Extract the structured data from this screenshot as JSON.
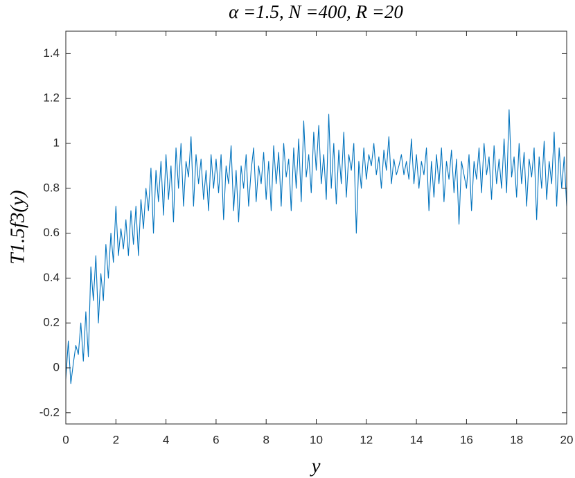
{
  "chart_data": {
    "type": "line",
    "title": "α =1.5, N =400, R =20",
    "x_label": "y",
    "y_label": "T1.5f3(y)",
    "xlim": [
      0,
      20
    ],
    "ylim": [
      -0.25,
      1.5
    ],
    "xticks": [
      0,
      2,
      4,
      6,
      8,
      10,
      12,
      14,
      16,
      18,
      20
    ],
    "yticks": [
      -0.2,
      0,
      0.2,
      0.4,
      0.6,
      0.8,
      1,
      1.2,
      1.4
    ],
    "series": [
      {
        "color": "#0072bd",
        "x": [
          0,
          0.1,
          0.2,
          0.3,
          0.4,
          0.5,
          0.6,
          0.7,
          0.8,
          0.9,
          1,
          1.1,
          1.2,
          1.3,
          1.4,
          1.5,
          1.6,
          1.7,
          1.8,
          1.9,
          2,
          2.1,
          2.2,
          2.3,
          2.4,
          2.5,
          2.6,
          2.7,
          2.8,
          2.9,
          3,
          3.1,
          3.2,
          3.3,
          3.4,
          3.5,
          3.6,
          3.7,
          3.8,
          3.9,
          4,
          4.1,
          4.2,
          4.3,
          4.4,
          4.5,
          4.6,
          4.7,
          4.8,
          4.9,
          5,
          5.1,
          5.2,
          5.3,
          5.4,
          5.5,
          5.6,
          5.7,
          5.8,
          5.9,
          6,
          6.1,
          6.2,
          6.3,
          6.4,
          6.5,
          6.6,
          6.7,
          6.8,
          6.9,
          7,
          7.1,
          7.2,
          7.3,
          7.4,
          7.5,
          7.6,
          7.7,
          7.8,
          7.9,
          8,
          8.1,
          8.2,
          8.3,
          8.4,
          8.5,
          8.6,
          8.7,
          8.8,
          8.9,
          9,
          9.1,
          9.2,
          9.3,
          9.4,
          9.5,
          9.6,
          9.7,
          9.8,
          9.9,
          10,
          10.1,
          10.2,
          10.3,
          10.4,
          10.5,
          10.6,
          10.7,
          10.8,
          10.9,
          11,
          11.1,
          11.2,
          11.3,
          11.4,
          11.5,
          11.6,
          11.7,
          11.8,
          11.9,
          12,
          12.1,
          12.2,
          12.3,
          12.4,
          12.5,
          12.6,
          12.7,
          12.8,
          12.9,
          13,
          13.1,
          13.2,
          13.3,
          13.4,
          13.5,
          13.6,
          13.7,
          13.8,
          13.9,
          14,
          14.1,
          14.2,
          14.3,
          14.4,
          14.5,
          14.6,
          14.7,
          14.8,
          14.9,
          15,
          15.1,
          15.2,
          15.3,
          15.4,
          15.5,
          15.6,
          15.7,
          15.8,
          15.9,
          16,
          16.1,
          16.2,
          16.3,
          16.4,
          16.5,
          16.6,
          16.7,
          16.8,
          16.9,
          17,
          17.1,
          17.2,
          17.3,
          17.4,
          17.5,
          17.6,
          17.7,
          17.8,
          17.9,
          18,
          18.1,
          18.2,
          18.3,
          18.4,
          18.5,
          18.6,
          18.7,
          18.8,
          18.9,
          19,
          19.1,
          19.2,
          19.3,
          19.4,
          19.5,
          19.6,
          19.7,
          19.8,
          19.9,
          20
        ],
        "values": [
          -0.05,
          0.12,
          -0.07,
          0.02,
          0.1,
          0.06,
          0.2,
          0.03,
          0.25,
          0.05,
          0.45,
          0.3,
          0.5,
          0.2,
          0.42,
          0.3,
          0.55,
          0.4,
          0.6,
          0.47,
          0.72,
          0.5,
          0.62,
          0.53,
          0.66,
          0.5,
          0.7,
          0.55,
          0.72,
          0.5,
          0.75,
          0.62,
          0.8,
          0.7,
          0.89,
          0.6,
          0.88,
          0.74,
          0.92,
          0.68,
          0.95,
          0.75,
          0.9,
          0.65,
          0.98,
          0.8,
          1.0,
          0.72,
          0.92,
          0.85,
          1.03,
          0.72,
          0.95,
          0.82,
          0.93,
          0.75,
          0.88,
          0.7,
          0.95,
          0.8,
          0.93,
          0.78,
          0.95,
          0.66,
          0.9,
          0.82,
          0.99,
          0.7,
          0.88,
          0.65,
          0.9,
          0.8,
          0.95,
          0.72,
          0.88,
          0.98,
          0.74,
          0.9,
          0.82,
          0.96,
          0.75,
          0.92,
          0.7,
          0.99,
          0.82,
          0.96,
          0.72,
          1.0,
          0.85,
          0.93,
          0.7,
          0.98,
          0.8,
          1.02,
          0.74,
          1.1,
          0.85,
          0.95,
          0.78,
          1.05,
          0.88,
          1.08,
          0.82,
          0.95,
          0.75,
          1.13,
          0.8,
          1.0,
          0.73,
          0.97,
          0.82,
          1.05,
          0.76,
          0.95,
          0.88,
          1.0,
          0.6,
          0.92,
          0.8,
          0.98,
          0.84,
          0.95,
          0.9,
          1.0,
          0.86,
          0.94,
          0.8,
          0.97,
          0.88,
          1.03,
          0.82,
          0.93,
          0.86,
          0.9,
          0.95,
          0.86,
          0.92,
          0.84,
          1.02,
          0.82,
          0.95,
          0.8,
          0.92,
          0.86,
          0.98,
          0.7,
          0.92,
          0.76,
          0.95,
          0.82,
          0.98,
          0.74,
          0.92,
          0.84,
          0.97,
          0.78,
          0.93,
          0.64,
          0.92,
          0.86,
          0.8,
          0.95,
          0.7,
          0.92,
          0.84,
          0.98,
          0.78,
          1.0,
          0.86,
          0.94,
          0.75,
          0.99,
          0.82,
          0.93,
          0.8,
          1.02,
          0.78,
          1.15,
          0.85,
          0.94,
          0.76,
          1.0,
          0.82,
          0.96,
          0.72,
          0.93,
          0.85,
          0.98,
          0.66,
          0.94,
          0.8,
          1.01,
          0.75,
          0.92,
          0.82,
          1.05,
          0.72,
          0.98,
          0.8,
          0.94,
          0.72
        ]
      }
    ]
  }
}
